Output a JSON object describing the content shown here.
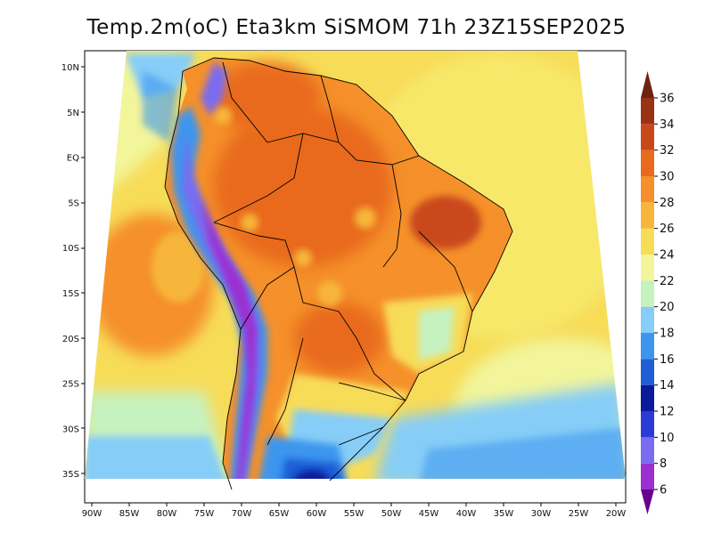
{
  "title": "Temp.2m(oC) Eta3km SiSMOM 71h 23Z15SEP2025",
  "map": {
    "lon_labels": [
      "90W",
      "85W",
      "80W",
      "75W",
      "70W",
      "65W",
      "60W",
      "55W",
      "50W",
      "45W",
      "40W",
      "35W",
      "30W",
      "25W",
      "20W"
    ],
    "lat_labels": [
      "10N",
      "5N",
      "EQ",
      "5S",
      "10S",
      "15S",
      "20S",
      "25S",
      "30S",
      "35S"
    ]
  },
  "colorbar": {
    "labels": [
      "6",
      "8",
      "10",
      "12",
      "14",
      "16",
      "18",
      "20",
      "22",
      "24",
      "26",
      "28",
      "30",
      "32",
      "34",
      "36"
    ],
    "colors": [
      "#6a008c",
      "#9c2fd0",
      "#7a6cf0",
      "#2b3cd6",
      "#0a1a9a",
      "#1f5ed6",
      "#3c96ee",
      "#86cdf7",
      "#c6f2c0",
      "#f2f59a",
      "#f7dc58",
      "#f7b63a",
      "#f5902a",
      "#e96a1c",
      "#c9481a",
      "#9a3214",
      "#6e2410"
    ]
  }
}
